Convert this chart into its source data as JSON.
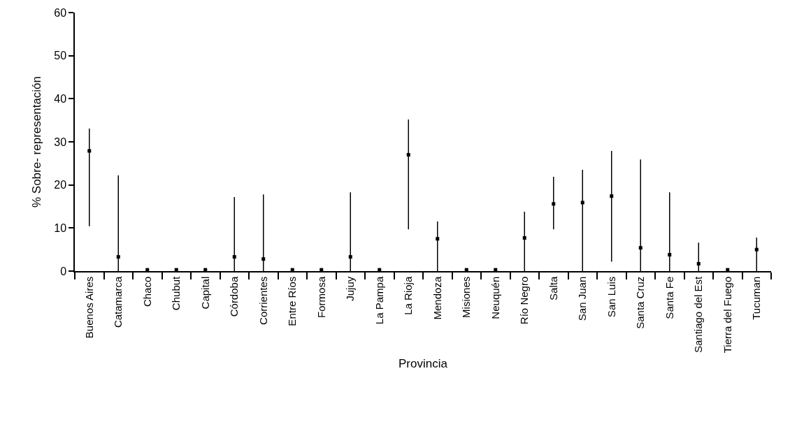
{
  "chart_data": {
    "type": "scatter",
    "xlabel": "Provincia",
    "ylabel": "% Sobre- representación",
    "categories": [
      "Buenos Aires",
      "Catamarca",
      "Chaco",
      "Chubut",
      "Capital",
      "Córdoba",
      "Corrientes",
      "Entre Ríos",
      "Formosa",
      "Jujuy",
      "La Pampa",
      "La Rioja",
      "Mendoza",
      "Misiones",
      "Neuquén",
      "Río Negro",
      "Salta",
      "San Juan",
      "San Luis",
      "Santa Cruz",
      "Santa Fe",
      "Santiago del Est",
      "Tierra del Fuego",
      "Tucuman"
    ],
    "values": [
      27.9,
      3.3,
      0.3,
      0.3,
      0.3,
      3.3,
      2.8,
      0.3,
      0.3,
      3.3,
      0.3,
      27.0,
      7.5,
      0.3,
      0.3,
      7.7,
      15.6,
      15.9,
      17.4,
      5.4,
      3.8,
      1.7,
      0.3,
      5.0
    ],
    "errors": [
      [
        10.4,
        33.1
      ],
      [
        0,
        22.2
      ],
      null,
      null,
      null,
      [
        0,
        17.2
      ],
      [
        0,
        17.8
      ],
      null,
      null,
      [
        0,
        18.3
      ],
      null,
      [
        9.7,
        35.2
      ],
      [
        0,
        11.5
      ],
      null,
      null,
      [
        0,
        13.8
      ],
      [
        9.7,
        21.9
      ],
      [
        0,
        23.5
      ],
      [
        2.2,
        27.9
      ],
      [
        0,
        25.9
      ],
      [
        0,
        18.3
      ],
      [
        0,
        6.6
      ],
      null,
      [
        0,
        7.8
      ]
    ],
    "color": "#000000",
    "ylim": [
      0,
      60
    ],
    "yticks": [
      0,
      10,
      20,
      30,
      40,
      50,
      60
    ],
    "grid": false
  }
}
